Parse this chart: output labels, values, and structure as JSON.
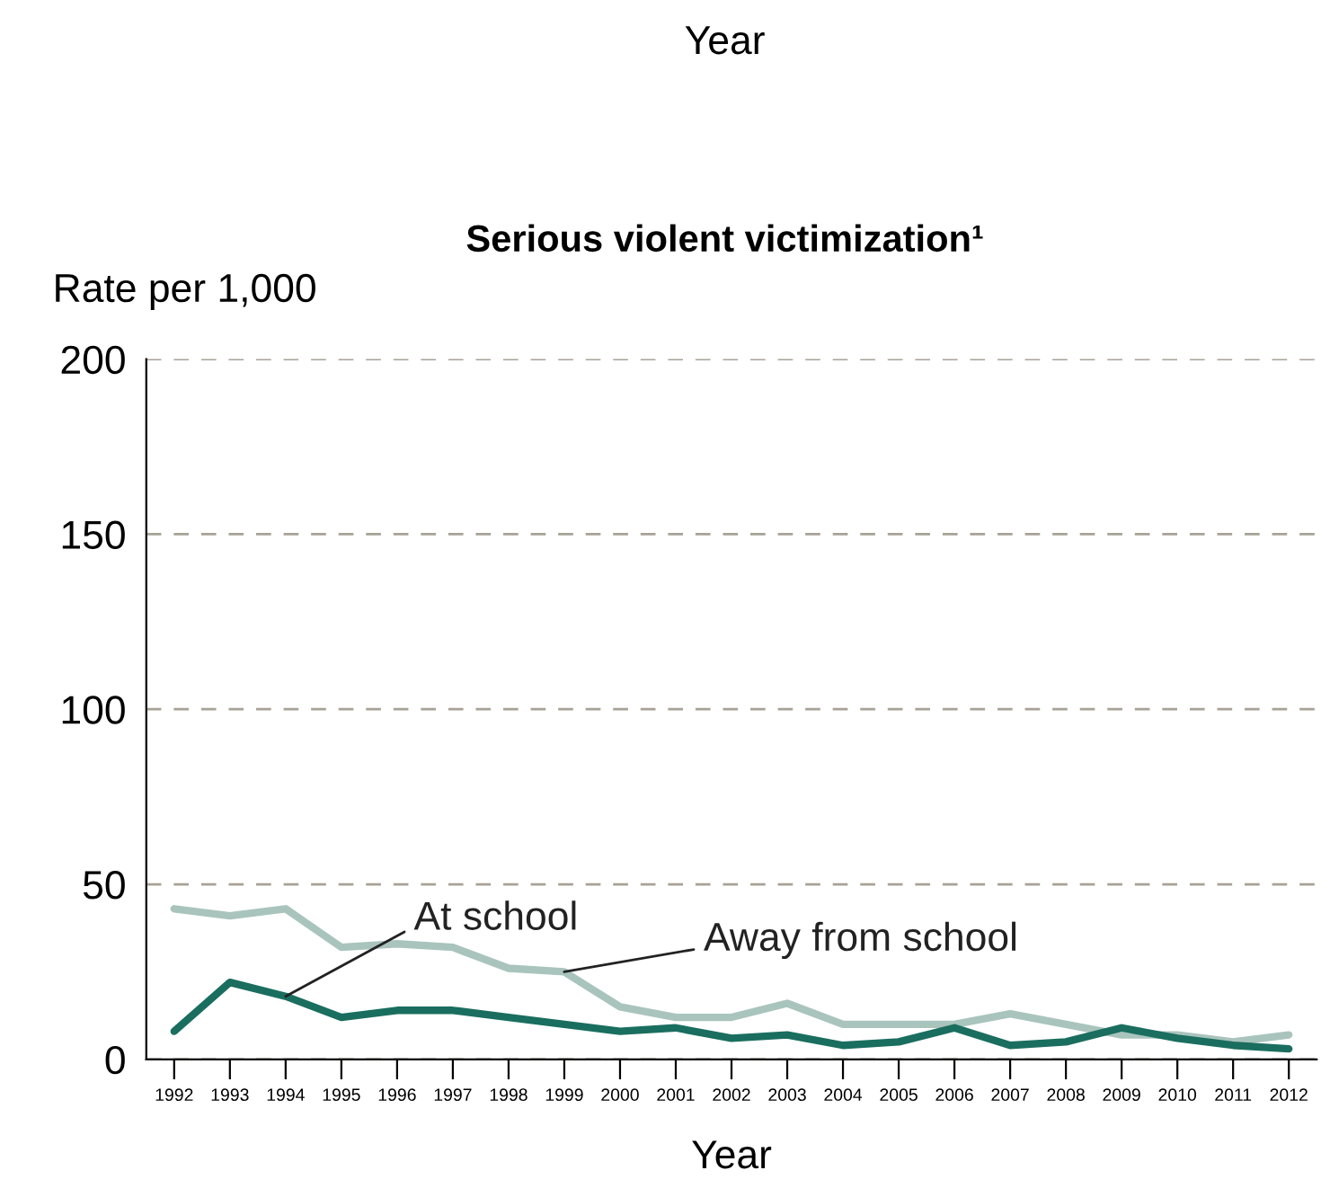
{
  "chart_data": {
    "type": "line",
    "title": "Serious violent victimization¹",
    "xlabel": "Year",
    "ylabel": "Rate per 1,000",
    "categories": [
      "1992",
      "1993",
      "1994",
      "1995",
      "1996",
      "1997",
      "1998",
      "1999",
      "2000",
      "2001",
      "2002",
      "2003",
      "2004",
      "2005",
      "2006",
      "2007",
      "2008",
      "2009",
      "2010",
      "2011",
      "2012"
    ],
    "series": [
      {
        "color": "#a9c4bd",
        "values": [
          43,
          41,
          43,
          32,
          33,
          32,
          26,
          25,
          15,
          12,
          12,
          16,
          10,
          10,
          10,
          13,
          10,
          7,
          7,
          5,
          7
        ]
      },
      {
        "color": "#1a6e5f",
        "values": [
          8,
          22,
          18,
          12,
          14,
          14,
          12,
          10,
          8,
          9,
          6,
          7,
          4,
          5,
          9,
          4,
          5,
          9,
          6,
          4,
          3
        ]
      }
    ],
    "ylim": [
      0,
      200
    ],
    "yticks": [
      0,
      50,
      100,
      150,
      200
    ],
    "grid": "y",
    "annotations": [
      "Year",
      {
        "text": "At school",
        "x": "1994",
        "y": 18
      },
      {
        "text": "Away from school",
        "x": "1999",
        "y": 25
      }
    ]
  }
}
